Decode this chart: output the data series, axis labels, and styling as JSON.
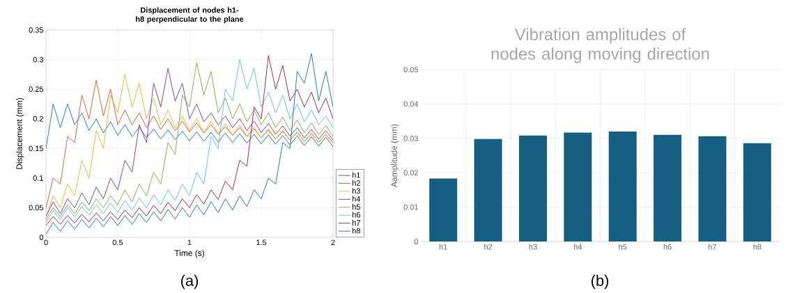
{
  "chart_data": [
    {
      "type": "line",
      "title": "Displacement of nodes h1-h8 perpendicular to the plane",
      "xlabel": "Time (s)",
      "ylabel": "Displacement (mm)",
      "x": [
        0,
        0.05,
        0.1,
        0.15,
        0.2,
        0.25,
        0.3,
        0.35,
        0.4,
        0.45,
        0.5,
        0.55,
        0.6,
        0.65,
        0.7,
        0.75,
        0.8,
        0.85,
        0.9,
        0.95,
        1.0,
        1.05,
        1.1,
        1.15,
        1.2,
        1.25,
        1.3,
        1.35,
        1.4,
        1.45,
        1.5,
        1.55,
        1.6,
        1.65,
        1.7,
        1.75,
        1.8,
        1.85,
        1.9,
        1.95,
        2.0
      ],
      "series": [
        {
          "name": "h1",
          "color": "#0072bd",
          "values": [
            0.15,
            0.225,
            0.185,
            0.225,
            0.19,
            0.21,
            0.18,
            0.2,
            0.176,
            0.195,
            0.172,
            0.19,
            0.17,
            0.186,
            0.168,
            0.183,
            0.166,
            0.181,
            0.165,
            0.179,
            0.163,
            0.178,
            0.162,
            0.177,
            0.161,
            0.176,
            0.16,
            0.175,
            0.159,
            0.174,
            0.158,
            0.173,
            0.157,
            0.172,
            0.156,
            0.171,
            0.155,
            0.17,
            0.154,
            0.169,
            0.153
          ]
        },
        {
          "name": "h2",
          "color": "#d95319",
          "values": [
            0.05,
            0.1,
            0.09,
            0.17,
            0.16,
            0.24,
            0.2,
            0.265,
            0.205,
            0.25,
            0.19,
            0.215,
            0.19,
            0.21,
            0.185,
            0.205,
            0.182,
            0.2,
            0.18,
            0.196,
            0.178,
            0.193,
            0.176,
            0.19,
            0.174,
            0.187,
            0.172,
            0.185,
            0.17,
            0.183,
            0.168,
            0.181,
            0.166,
            0.179,
            0.164,
            0.177,
            0.162,
            0.175,
            0.161,
            0.173,
            0.16
          ]
        },
        {
          "name": "h3",
          "color": "#edb120",
          "values": [
            0.035,
            0.07,
            0.05,
            0.09,
            0.07,
            0.13,
            0.1,
            0.18,
            0.15,
            0.24,
            0.21,
            0.275,
            0.22,
            0.26,
            0.2,
            0.235,
            0.19,
            0.215,
            0.185,
            0.205,
            0.18,
            0.2,
            0.177,
            0.196,
            0.175,
            0.192,
            0.172,
            0.189,
            0.17,
            0.186,
            0.168,
            0.183,
            0.166,
            0.181,
            0.164,
            0.178,
            0.162,
            0.176,
            0.16,
            0.174,
            0.158
          ]
        },
        {
          "name": "h4",
          "color": "#7e2f8e",
          "values": [
            0.035,
            0.06,
            0.04,
            0.065,
            0.05,
            0.075,
            0.055,
            0.085,
            0.065,
            0.1,
            0.08,
            0.13,
            0.11,
            0.19,
            0.16,
            0.26,
            0.22,
            0.285,
            0.23,
            0.26,
            0.2,
            0.225,
            0.195,
            0.21,
            0.19,
            0.205,
            0.185,
            0.2,
            0.18,
            0.196,
            0.177,
            0.192,
            0.174,
            0.188,
            0.171,
            0.185,
            0.168,
            0.182,
            0.166,
            0.18,
            0.164
          ]
        },
        {
          "name": "h5",
          "color": "#77ac30",
          "values": [
            0.03,
            0.05,
            0.035,
            0.055,
            0.04,
            0.06,
            0.045,
            0.065,
            0.05,
            0.07,
            0.055,
            0.08,
            0.06,
            0.09,
            0.07,
            0.11,
            0.09,
            0.16,
            0.14,
            0.24,
            0.22,
            0.295,
            0.24,
            0.28,
            0.21,
            0.235,
            0.2,
            0.225,
            0.195,
            0.215,
            0.19,
            0.21,
            0.185,
            0.203,
            0.18,
            0.198,
            0.176,
            0.193,
            0.173,
            0.189,
            0.17
          ]
        },
        {
          "name": "h6",
          "color": "#4dbeee",
          "values": [
            0.025,
            0.045,
            0.03,
            0.05,
            0.035,
            0.052,
            0.037,
            0.055,
            0.04,
            0.058,
            0.042,
            0.062,
            0.046,
            0.066,
            0.05,
            0.072,
            0.055,
            0.08,
            0.062,
            0.09,
            0.07,
            0.11,
            0.09,
            0.17,
            0.15,
            0.25,
            0.23,
            0.3,
            0.25,
            0.285,
            0.22,
            0.245,
            0.21,
            0.24,
            0.2,
            0.225,
            0.195,
            0.215,
            0.19,
            0.205,
            0.185
          ]
        },
        {
          "name": "h7",
          "color": "#a2142f",
          "values": [
            0.02,
            0.035,
            0.022,
            0.037,
            0.024,
            0.039,
            0.026,
            0.041,
            0.028,
            0.043,
            0.03,
            0.046,
            0.033,
            0.05,
            0.036,
            0.054,
            0.04,
            0.059,
            0.045,
            0.065,
            0.05,
            0.072,
            0.056,
            0.08,
            0.064,
            0.095,
            0.08,
            0.13,
            0.12,
            0.22,
            0.2,
            0.307,
            0.25,
            0.29,
            0.23,
            0.25,
            0.22,
            0.245,
            0.21,
            0.235,
            0.2
          ]
        },
        {
          "name": "h8",
          "color": "#0072bd",
          "values": [
            0.005,
            0.025,
            0.01,
            0.028,
            0.014,
            0.03,
            0.016,
            0.032,
            0.018,
            0.035,
            0.02,
            0.037,
            0.022,
            0.04,
            0.025,
            0.043,
            0.028,
            0.047,
            0.031,
            0.05,
            0.034,
            0.055,
            0.038,
            0.06,
            0.042,
            0.065,
            0.046,
            0.07,
            0.052,
            0.08,
            0.065,
            0.1,
            0.09,
            0.16,
            0.15,
            0.28,
            0.26,
            0.31,
            0.23,
            0.28,
            0.22
          ]
        }
      ],
      "xlim": [
        0,
        2
      ],
      "ylim": [
        0,
        0.35
      ],
      "xticks": [
        0,
        0.5,
        1,
        1.5,
        2
      ],
      "yticks": [
        0,
        0.05,
        0.1,
        0.15,
        0.2,
        0.25,
        0.3,
        0.35
      ],
      "grid": true,
      "legend": "bottom right",
      "annotations": [
        "(a)"
      ]
    },
    {
      "type": "bar",
      "title": "Vibration amplitudes of nodes along moving direction",
      "ylabel": "Aamplitude (mm)",
      "categories": [
        "h1",
        "h2",
        "h3",
        "h4",
        "h5",
        "h6",
        "h7",
        "h8"
      ],
      "values": [
        0.0183,
        0.0298,
        0.0308,
        0.0317,
        0.032,
        0.031,
        0.0306,
        0.0286
      ],
      "color": "#155f82",
      "ylim": [
        0,
        0.05
      ],
      "yticks": [
        0,
        0.01,
        0.02,
        0.03,
        0.04,
        0.05
      ],
      "grid": true,
      "annotations": [
        "(b)"
      ]
    }
  ]
}
